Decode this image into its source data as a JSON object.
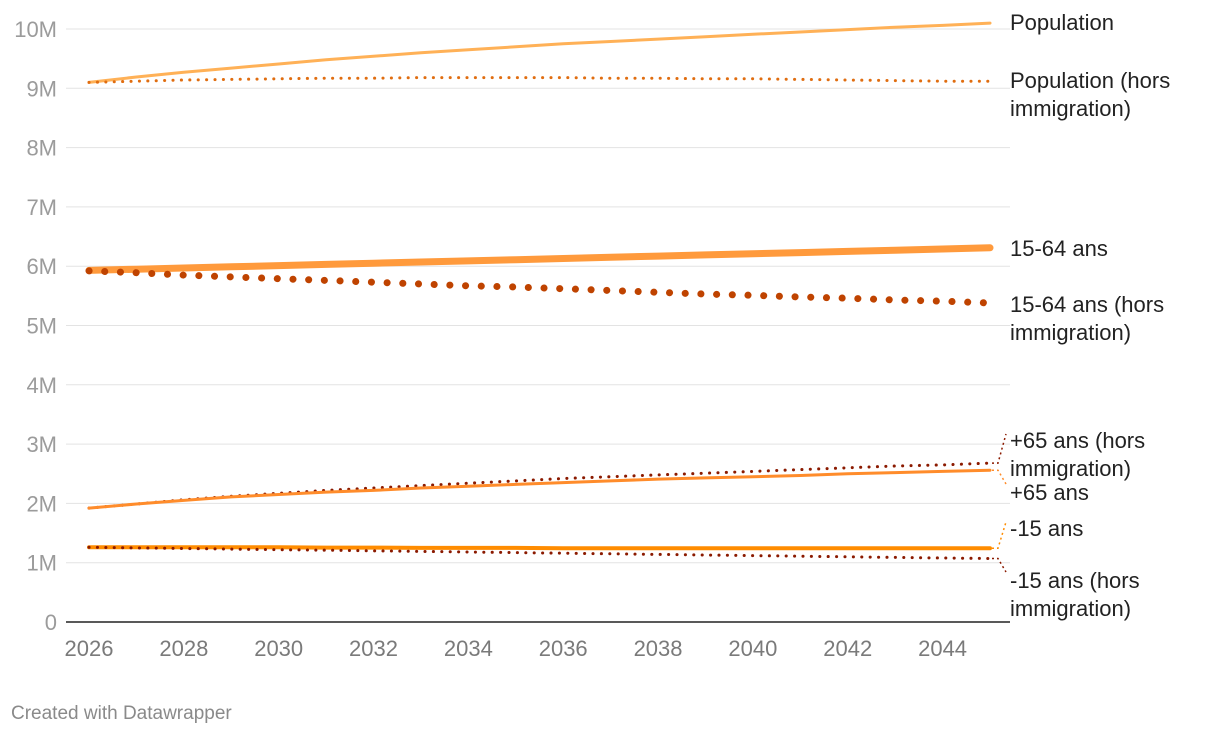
{
  "chart_data": {
    "type": "line",
    "x": [
      2026,
      2027,
      2028,
      2029,
      2030,
      2031,
      2032,
      2033,
      2034,
      2035,
      2036,
      2037,
      2038,
      2039,
      2040,
      2041,
      2042,
      2043,
      2044,
      2045
    ],
    "xticks": [
      2026,
      2028,
      2030,
      2032,
      2034,
      2036,
      2038,
      2040,
      2042,
      2044
    ],
    "ylim": [
      0,
      10000000
    ],
    "yticks": [
      0,
      1000000,
      2000000,
      3000000,
      4000000,
      5000000,
      6000000,
      7000000,
      8000000,
      9000000,
      10000000
    ],
    "ytick_labels": [
      "0",
      "1M",
      "2M",
      "3M",
      "4M",
      "5M",
      "6M",
      "7M",
      "8M",
      "9M",
      "10M"
    ],
    "grid": "horizontal",
    "legend": "direct labels at line ends (right)",
    "series": [
      {
        "name": "Population",
        "label_lines": [
          "Population"
        ],
        "color": "#ffb157",
        "style": "solid",
        "weight": "normal",
        "values": [
          9100000,
          9190000,
          9270000,
          9340000,
          9410000,
          9480000,
          9540000,
          9600000,
          9650000,
          9700000,
          9750000,
          9790000,
          9830000,
          9870000,
          9910000,
          9950000,
          9990000,
          10030000,
          10060000,
          10100000
        ]
      },
      {
        "name": "Population (hors immigration)",
        "label_lines": [
          "Population (hors",
          "immigration)"
        ],
        "color": "#e06d10",
        "style": "dotted",
        "weight": "normal",
        "values": [
          9100000,
          9120000,
          9140000,
          9150000,
          9160000,
          9170000,
          9170000,
          9180000,
          9180000,
          9180000,
          9180000,
          9170000,
          9170000,
          9160000,
          9160000,
          9150000,
          9140000,
          9130000,
          9120000,
          9120000
        ]
      },
      {
        "name": "15-64 ans",
        "label_lines": [
          "15-64 ans"
        ],
        "color": "#ff9a3c",
        "style": "solid",
        "weight": "heavy",
        "values": [
          5930000,
          5950000,
          5970000,
          5990000,
          6010000,
          6030000,
          6050000,
          6070000,
          6090000,
          6110000,
          6130000,
          6150000,
          6170000,
          6190000,
          6210000,
          6230000,
          6250000,
          6270000,
          6290000,
          6310000
        ]
      },
      {
        "name": "15-64 ans (hors immigration)",
        "label_lines": [
          "15-64 ans (hors",
          "immigration)"
        ],
        "color": "#bf4300",
        "style": "dotted",
        "weight": "heavy",
        "values": [
          5920000,
          5890000,
          5850000,
          5820000,
          5790000,
          5760000,
          5730000,
          5700000,
          5670000,
          5650000,
          5620000,
          5590000,
          5560000,
          5530000,
          5510000,
          5480000,
          5460000,
          5430000,
          5410000,
          5380000
        ]
      },
      {
        "name": "+65 ans (hors immigration)",
        "label_lines": [
          "+65 ans (hors",
          "immigration)"
        ],
        "color": "#8b1a00",
        "style": "dotted",
        "weight": "normal",
        "values": [
          1920000,
          1990000,
          2060000,
          2120000,
          2170000,
          2220000,
          2260000,
          2300000,
          2340000,
          2380000,
          2420000,
          2450000,
          2480000,
          2510000,
          2540000,
          2570000,
          2600000,
          2630000,
          2650000,
          2680000
        ]
      },
      {
        "name": "+65 ans",
        "label_lines": [
          "+65 ans"
        ],
        "color": "#ff8c2b",
        "style": "solid",
        "weight": "normal",
        "values": [
          1920000,
          1990000,
          2050000,
          2110000,
          2150000,
          2190000,
          2220000,
          2260000,
          2290000,
          2320000,
          2350000,
          2380000,
          2410000,
          2430000,
          2450000,
          2470000,
          2500000,
          2520000,
          2540000,
          2560000
        ]
      },
      {
        "name": "-15 ans",
        "label_lines": [
          "-15 ans"
        ],
        "color": "#ff8c00",
        "style": "solid",
        "weight": "medium",
        "values": [
          1260000,
          1260000,
          1260000,
          1260000,
          1260000,
          1255000,
          1255000,
          1250000,
          1250000,
          1250000,
          1245000,
          1245000,
          1245000,
          1245000,
          1245000,
          1245000,
          1245000,
          1245000,
          1245000,
          1245000
        ]
      },
      {
        "name": "-15 ans (hors immigration)",
        "label_lines": [
          "-15 ans (hors",
          "immigration)"
        ],
        "color": "#8b1a00",
        "style": "dotted",
        "weight": "normal",
        "values": [
          1260000,
          1250000,
          1240000,
          1230000,
          1220000,
          1210000,
          1200000,
          1190000,
          1180000,
          1170000,
          1160000,
          1150000,
          1140000,
          1130000,
          1120000,
          1110000,
          1100000,
          1090000,
          1080000,
          1070000
        ]
      }
    ]
  },
  "footer": {
    "credit": "Created with Datawrapper"
  }
}
